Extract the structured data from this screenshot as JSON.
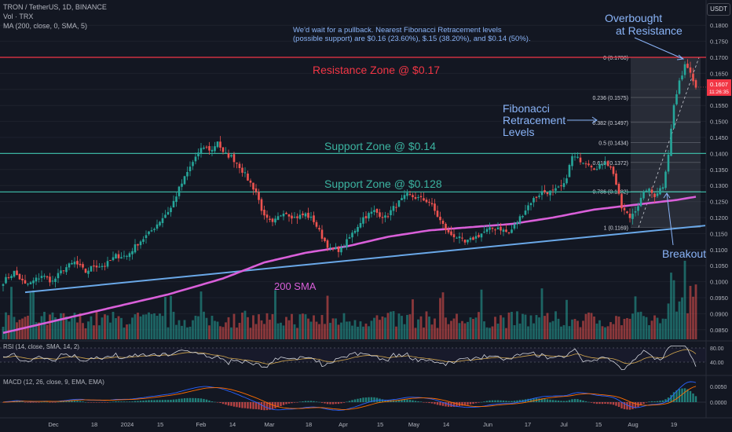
{
  "header": {
    "title": "TRON / TetherUS, 1D, BINANCE",
    "vol": "Vol · TRX",
    "ma": "MA (200, close, 0, SMA, 5)",
    "currency_button": "USDT"
  },
  "annotations": {
    "note_line1": "We'd wait for a pullback. Nearest Fibonacci Retracement levels",
    "note_line2": "(possible support) are $0.16 (23.60%), $.15 (38.20%), and $0.14 (50%).",
    "overbought_line1": "Overbought",
    "overbought_line2": "at Resistance",
    "resistance": "Resistance Zone @ $0.17",
    "support_14": "Support Zone @ $0.14",
    "support_128": "Support Zone @ $0.128",
    "fib_line1": "Fibonacci",
    "fib_line2": "Retracement",
    "fib_line3": "Levels",
    "sma_label": "200 SMA",
    "breakout": "Breakout"
  },
  "price_axis": {
    "ticks": [
      "0.1800",
      "0.1750",
      "0.1700",
      "0.1650",
      "0.1600",
      "0.1550",
      "0.1500",
      "0.1450",
      "0.1400",
      "0.1350",
      "0.1300",
      "0.1250",
      "0.1200",
      "0.1150",
      "0.1100",
      "0.1050",
      "0.1000",
      "0.0950",
      "0.0900",
      "0.0850"
    ],
    "tick_values": [
      0.18,
      0.175,
      0.17,
      0.165,
      0.16,
      0.155,
      0.15,
      0.145,
      0.14,
      0.135,
      0.13,
      0.125,
      0.12,
      0.115,
      0.11,
      0.105,
      0.1,
      0.095,
      0.09,
      0.085
    ],
    "current_price": "0.1607",
    "countdown": "11:26:35",
    "current_value": 0.1607
  },
  "time_axis": [
    "Dec",
    "18",
    "2024",
    "15",
    "Feb",
    "14",
    "Mar",
    "18",
    "Apr",
    "15",
    "May",
    "14",
    "Jun",
    "17",
    "Jul",
    "15",
    "Aug",
    "19"
  ],
  "rsi": {
    "label": "RSI (14, close, SMA, 14, 2)",
    "ticks": [
      "80.00",
      "40.00"
    ]
  },
  "macd": {
    "label": "MACD (12, 26, close, 9, EMA, EMA)",
    "ticks": [
      "0.0050",
      "0.0000"
    ]
  },
  "fib_levels": [
    {
      "label": "0 (0.1700)",
      "value": 0.17
    },
    {
      "label": "0.236 (0.1575)",
      "value": 0.1575
    },
    {
      "label": "0.382 (0.1497)",
      "value": 0.1497
    },
    {
      "label": "0.5 (0.1434)",
      "value": 0.1434
    },
    {
      "label": "0.618 (0.1372)",
      "value": 0.1372
    },
    {
      "label": "0.786 (0.1282)",
      "value": 0.1282
    },
    {
      "label": "1 (0.1169)",
      "value": 0.1169
    }
  ],
  "colors": {
    "background": "#131722",
    "up": "#26a69a",
    "down": "#ef5350",
    "resistance": "#f23645",
    "support": "#3bb3a0",
    "trendline": "#6aa8e8",
    "sma": "#d95fd9",
    "annotation_blue": "#8ab4f8"
  },
  "chart_data": {
    "type": "candlestick",
    "symbol": "TRON / TetherUS",
    "interval": "1D",
    "exchange": "BINANCE",
    "ylim": [
      0.082,
      0.183
    ],
    "horizontal_levels": [
      {
        "name": "Resistance Zone @ $0.17",
        "value": 0.17
      },
      {
        "name": "Support Zone @ $0.14",
        "value": 0.14
      },
      {
        "name": "Support Zone @ $0.128",
        "value": 0.128
      }
    ],
    "close_anchors": [
      [
        0,
        0.1
      ],
      [
        4,
        0.103
      ],
      [
        8,
        0.099
      ],
      [
        10,
        0.0995
      ],
      [
        14,
        0.102
      ],
      [
        18,
        0.1
      ],
      [
        22,
        0.104
      ],
      [
        26,
        0.106
      ],
      [
        30,
        0.103
      ],
      [
        33,
        0.105
      ],
      [
        37,
        0.105
      ],
      [
        41,
        0.108
      ],
      [
        45,
        0.108
      ],
      [
        49,
        0.112
      ],
      [
        53,
        0.115
      ],
      [
        57,
        0.119
      ],
      [
        61,
        0.123
      ],
      [
        64,
        0.129
      ],
      [
        67,
        0.134
      ],
      [
        70,
        0.139
      ],
      [
        73,
        0.142
      ],
      [
        76,
        0.141
      ],
      [
        78,
        0.144
      ],
      [
        80,
        0.14
      ],
      [
        83,
        0.139
      ],
      [
        86,
        0.136
      ],
      [
        89,
        0.132
      ],
      [
        92,
        0.128
      ],
      [
        95,
        0.12
      ],
      [
        98,
        0.118
      ],
      [
        102,
        0.122
      ],
      [
        106,
        0.12
      ],
      [
        110,
        0.121
      ],
      [
        113,
        0.119
      ],
      [
        116,
        0.114
      ],
      [
        119,
        0.11
      ],
      [
        123,
        0.11
      ],
      [
        127,
        0.115
      ],
      [
        131,
        0.12
      ],
      [
        135,
        0.122
      ],
      [
        139,
        0.12
      ],
      [
        143,
        0.124
      ],
      [
        147,
        0.127
      ],
      [
        151,
        0.126
      ],
      [
        155,
        0.125
      ],
      [
        159,
        0.119
      ],
      [
        162,
        0.115
      ],
      [
        165,
        0.114
      ],
      [
        168,
        0.112
      ],
      [
        172,
        0.114
      ],
      [
        176,
        0.116
      ],
      [
        180,
        0.117
      ],
      [
        184,
        0.115
      ],
      [
        188,
        0.12
      ],
      [
        192,
        0.125
      ],
      [
        196,
        0.128
      ],
      [
        200,
        0.128
      ],
      [
        204,
        0.13
      ],
      [
        207,
        0.139
      ],
      [
        210,
        0.138
      ],
      [
        213,
        0.137
      ],
      [
        216,
        0.135
      ],
      [
        219,
        0.138
      ],
      [
        222,
        0.134
      ],
      [
        225,
        0.123
      ],
      [
        228,
        0.12
      ],
      [
        231,
        0.124
      ],
      [
        234,
        0.129
      ],
      [
        237,
        0.127
      ],
      [
        240,
        0.13
      ],
      [
        242,
        0.14
      ],
      [
        244,
        0.155
      ],
      [
        246,
        0.162
      ],
      [
        248,
        0.168
      ],
      [
        250,
        0.166
      ],
      [
        252,
        0.1607
      ]
    ],
    "sma200_anchors": [
      [
        0,
        0.084
      ],
      [
        30,
        0.09
      ],
      [
        60,
        0.096
      ],
      [
        80,
        0.101
      ],
      [
        95,
        0.106
      ],
      [
        110,
        0.109
      ],
      [
        125,
        0.111
      ],
      [
        140,
        0.114
      ],
      [
        155,
        0.116
      ],
      [
        170,
        0.117
      ],
      [
        185,
        0.118
      ],
      [
        200,
        0.12
      ],
      [
        215,
        0.1225
      ],
      [
        230,
        0.124
      ],
      [
        245,
        0.1255
      ],
      [
        252,
        0.1265
      ]
    ],
    "trendline": [
      [
        0,
        0.096
      ],
      [
        252,
        0.1175
      ]
    ],
    "fib_range": {
      "low": 0.1169,
      "high": 0.17
    },
    "candle_count": 253
  }
}
